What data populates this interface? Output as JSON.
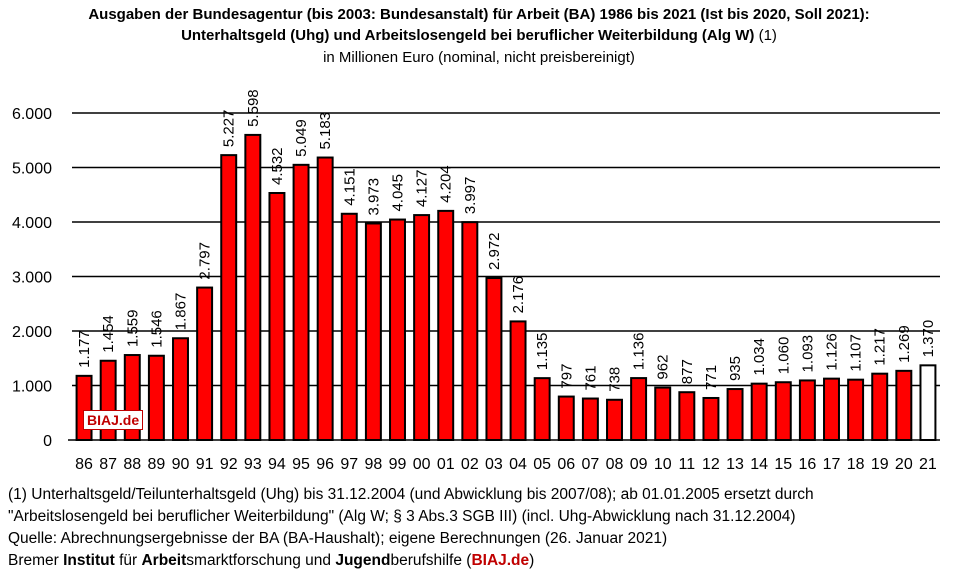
{
  "title": {
    "line1": "Ausgaben der Bundesagentur (bis 2003: Bundesanstalt) für Arbeit (BA) 1986 bis 2021 (Ist bis 2020, Soll 2021):",
    "line2_bold": "Unterhaltsgeld (Uhg) und Arbeitslosengeld bei beruflicher Weiterbildung (Alg W)",
    "line2_note": " (1)",
    "line3": "in Millionen Euro (nominal, nicht preisbereinigt)"
  },
  "badge": "BIAJ.de",
  "colors": {
    "bar": "#ff0000",
    "bar_soll": "#ffffff",
    "outline": "#000000",
    "accent": "#c00000"
  },
  "chart_data": {
    "type": "bar",
    "title": "Ausgaben der Bundesagentur (bis 2003: Bundesanstalt) für Arbeit (BA) 1986 bis 2021 (Ist bis 2020, Soll 2021): Unterhaltsgeld (Uhg) und Arbeitslosengeld bei beruflicher Weiterbildung (Alg W) (1)",
    "ylabel": "in Millionen Euro (nominal, nicht preisbereinigt)",
    "xlabel": "",
    "ylim": [
      0,
      6000
    ],
    "yticks": [
      0,
      1000,
      2000,
      3000,
      4000,
      5000,
      6000
    ],
    "ytick_labels": [
      "0",
      "1.000",
      "2.000",
      "3.000",
      "4.000",
      "5.000",
      "6.000"
    ],
    "grid": true,
    "categories": [
      "86",
      "87",
      "88",
      "89",
      "90",
      "91",
      "92",
      "93",
      "94",
      "95",
      "96",
      "97",
      "98",
      "99",
      "00",
      "01",
      "02",
      "03",
      "04",
      "05",
      "06",
      "07",
      "08",
      "09",
      "10",
      "11",
      "12",
      "13",
      "14",
      "15",
      "16",
      "17",
      "18",
      "19",
      "20",
      "21"
    ],
    "values": [
      1177,
      1454,
      1559,
      1546,
      1867,
      2797,
      5227,
      5598,
      4532,
      5049,
      5183,
      4151,
      3973,
      4045,
      4127,
      4204,
      3997,
      2972,
      2176,
      1135,
      797,
      761,
      738,
      1136,
      962,
      877,
      771,
      935,
      1034,
      1060,
      1093,
      1126,
      1107,
      1217,
      1269,
      1370
    ],
    "labels": [
      "1.177",
      "1.454",
      "1.559",
      "1.546",
      "1.867",
      "2.797",
      "5.227",
      "5.598",
      "4.532",
      "5.049",
      "5.183",
      "4.151",
      "3.973",
      "4.045",
      "4.127",
      "4.204",
      "3.997",
      "2.972",
      "2.176",
      "1.135",
      "797",
      "761",
      "738",
      "1.136",
      "962",
      "877",
      "771",
      "935",
      "1.034",
      "1.060",
      "1.093",
      "1.126",
      "1.107",
      "1.217",
      "1.269",
      "1.370"
    ],
    "series_status": [
      "Ist",
      "Ist",
      "Ist",
      "Ist",
      "Ist",
      "Ist",
      "Ist",
      "Ist",
      "Ist",
      "Ist",
      "Ist",
      "Ist",
      "Ist",
      "Ist",
      "Ist",
      "Ist",
      "Ist",
      "Ist",
      "Ist",
      "Ist",
      "Ist",
      "Ist",
      "Ist",
      "Ist",
      "Ist",
      "Ist",
      "Ist",
      "Ist",
      "Ist",
      "Ist",
      "Ist",
      "Ist",
      "Ist",
      "Ist",
      "Ist",
      "Soll"
    ]
  },
  "footnotes": {
    "line1": "(1) Unterhaltsgeld/Teilunterhaltsgeld  (Uhg) bis 31.12.2004 (und Abwicklung bis 2007/08); ab 01.01.2005 ersetzt durch",
    "line2": "\"Arbeitslosengeld bei beruflicher Weiterbildung\" (Alg W; § 3 Abs.3 SGB III) (incl. Uhg-Abwicklung nach 31.12.2004)",
    "line3": "Quelle: Abrechnungsergebnisse der BA (BA-Haushalt); eigene Berechnungen (26. Januar 2021)",
    "org_1": "Bremer ",
    "org_2": "Institut",
    "org_3": " für ",
    "org_4": "Arbeit",
    "org_5": "smarktforschung und ",
    "org_6": "Jugend",
    "org_7": "berufshilfe (",
    "org_8": "BIAJ.de",
    "org_9": ")"
  }
}
